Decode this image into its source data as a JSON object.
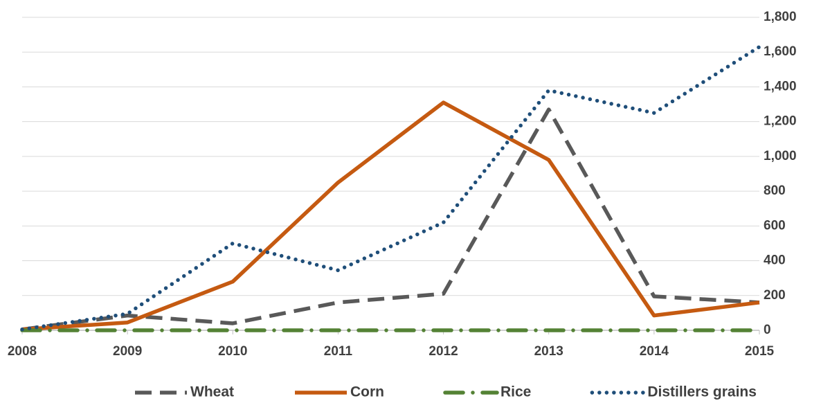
{
  "chart_data": {
    "type": "line",
    "x": [
      2008,
      2009,
      2010,
      2011,
      2012,
      2013,
      2014,
      2015
    ],
    "xlim": [
      2008,
      2015
    ],
    "xticks": [
      2008,
      2009,
      2010,
      2011,
      2012,
      2013,
      2014,
      2015
    ],
    "ylim": [
      0,
      1800
    ],
    "yticks": [
      0,
      200,
      400,
      600,
      800,
      {
        "value": 1000,
        "label": "1,000"
      },
      {
        "value": 1200,
        "label": "1,200"
      },
      {
        "value": 1400,
        "label": "1,400"
      },
      {
        "value": 1600,
        "label": "1,600"
      },
      {
        "value": 1800,
        "label": "1,800"
      }
    ],
    "y_axis_side": "right",
    "grid": true,
    "legend": "bottom",
    "series": [
      {
        "name": "Wheat",
        "color": "#595959",
        "line_style": "dashed",
        "values": [
          5,
          85,
          40,
          160,
          210,
          1270,
          195,
          160
        ]
      },
      {
        "name": "Corn",
        "color": "#c55a11",
        "line_style": "solid",
        "values": [
          5,
          45,
          280,
          850,
          1310,
          980,
          85,
          160
        ]
      },
      {
        "name": "Rice",
        "color": "#548235",
        "line_style": "dash-dot",
        "values": [
          0,
          0,
          0,
          0,
          0,
          0,
          0,
          0
        ]
      },
      {
        "name": "Distillers grains",
        "color": "#1f4e79",
        "line_style": "dotted",
        "values": [
          5,
          95,
          500,
          345,
          620,
          1380,
          1250,
          1630
        ]
      }
    ]
  }
}
